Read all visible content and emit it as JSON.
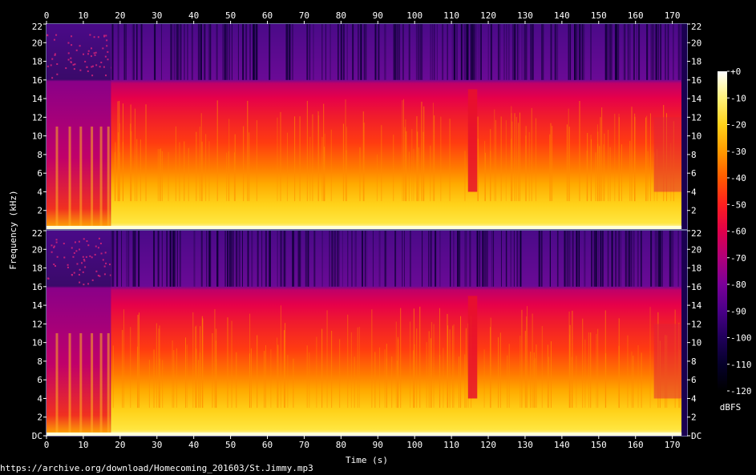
{
  "chart_data": {
    "type": "heatmap",
    "title": "",
    "xlabel": "Time (s)",
    "ylabel": "Frequency (kHz)",
    "x_ticks": [
      "0",
      "10",
      "20",
      "30",
      "40",
      "50",
      "60",
      "70",
      "80",
      "90",
      "100",
      "110",
      "120",
      "130",
      "140",
      "150",
      "160",
      "170"
    ],
    "xlim": [
      0,
      174
    ],
    "channels": [
      {
        "y_ticks": [
          "22",
          "20",
          "18",
          "16",
          "14",
          "12",
          "10",
          "8",
          "6",
          "4",
          "2"
        ],
        "ylim": [
          0,
          22
        ]
      },
      {
        "y_ticks": [
          "22",
          "20",
          "18",
          "16",
          "14",
          "12",
          "10",
          "8",
          "6",
          "4",
          "2",
          "DC"
        ],
        "ylim": [
          0,
          22
        ]
      }
    ],
    "colorbar": {
      "label": "dBFS",
      "ticks": [
        "+0",
        "-10",
        "-20",
        "-30",
        "-40",
        "-50",
        "-60",
        "-70",
        "-80",
        "-90",
        "-100",
        "-110",
        "-120"
      ],
      "range": [
        -120,
        0
      ],
      "colors": [
        "#ffffff",
        "#fff27a",
        "#ffd21a",
        "#ff9a00",
        "#ff5a00",
        "#ff1f1f",
        "#e0004a",
        "#b0007a",
        "#7a0099",
        "#4a0088",
        "#20005a",
        "#05002a",
        "#000000"
      ]
    },
    "regions": [
      {
        "name": "intro",
        "t_start": 0,
        "t_end": 17.5,
        "note_level_db": -55
      },
      {
        "name": "main",
        "t_start": 17.5,
        "t_end": 172.5,
        "level_db": -35
      },
      {
        "name": "dip",
        "t_start": 114.5,
        "t_end": 117,
        "level_db": -60
      },
      {
        "name": "fadeout",
        "t_start": 165,
        "t_end": 172.5
      },
      {
        "name": "lowpass_cutoff",
        "freq_khz": 16
      }
    ]
  },
  "footer": {
    "url": "https://archive.org/download/Homecoming_201603/St.Jimmy.mp3"
  }
}
